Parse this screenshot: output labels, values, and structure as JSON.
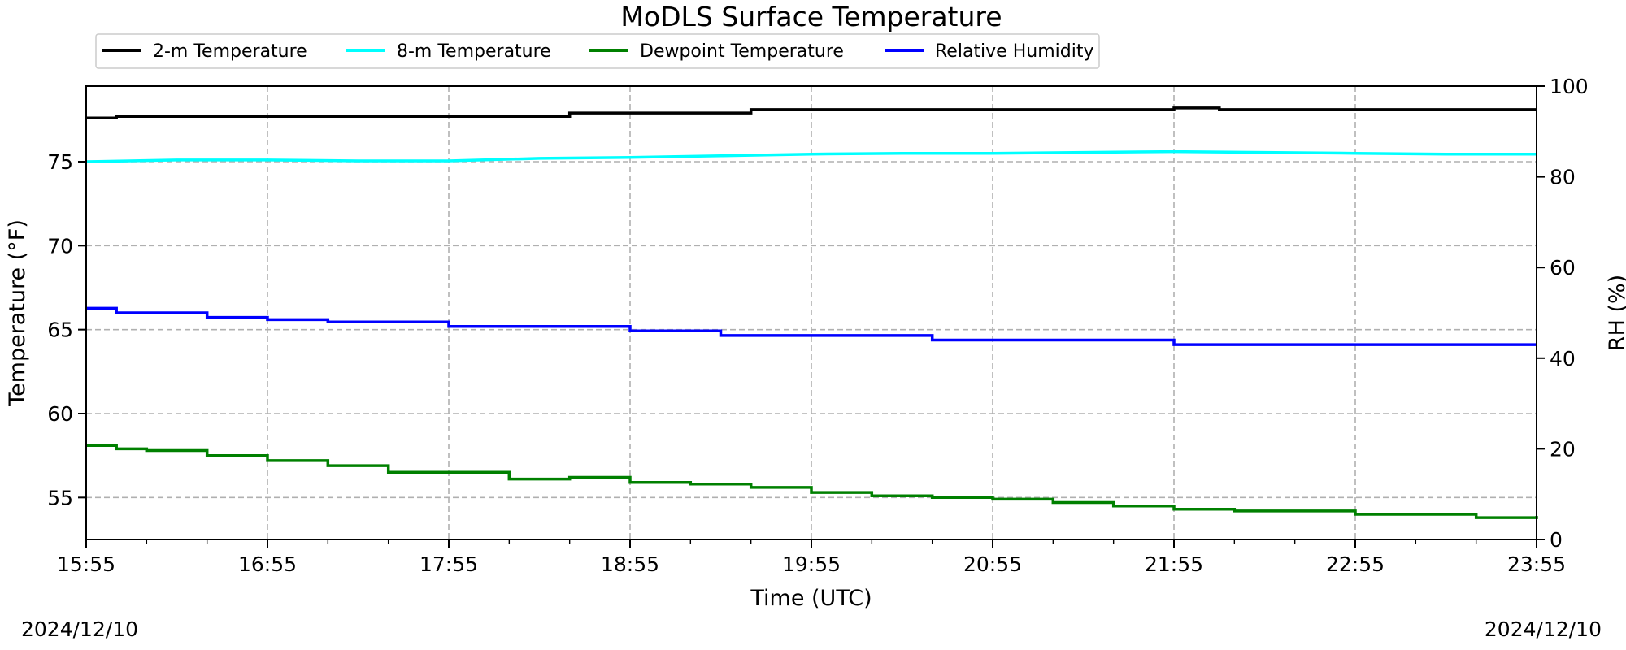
{
  "chart_data": {
    "type": "line",
    "title": "MoDLS Surface Temperature",
    "xlabel": "Time (UTC)",
    "ylabel": "Temperature ($^\\circ$F)",
    "ylabel_display": "Temperature (°F)",
    "y2label": "RH (%)",
    "x_ticks": [
      "15:55",
      "16:55",
      "17:55",
      "18:55",
      "19:55",
      "20:55",
      "21:55",
      "22:55",
      "23:55"
    ],
    "x_range": [
      "15:55",
      "23:55"
    ],
    "ylim": [
      52.5,
      79.5
    ],
    "y_ticks": [
      55,
      60,
      65,
      70,
      75
    ],
    "y2lim": [
      0,
      100
    ],
    "y2_ticks": [
      0,
      20,
      40,
      60,
      80,
      100
    ],
    "grid": true,
    "legend_position": "top-left outside",
    "series": [
      {
        "name": "2-m Temperature",
        "axis": "left",
        "color": "#000000",
        "x": [
          "15:55",
          "16:05",
          "16:55",
          "17:55",
          "18:25",
          "18:35",
          "18:55",
          "19:25",
          "19:35",
          "19:55",
          "20:55",
          "21:35",
          "21:55",
          "22:10",
          "22:55",
          "23:40",
          "23:55"
        ],
        "values": [
          77.6,
          77.7,
          77.7,
          77.7,
          77.7,
          77.9,
          77.9,
          77.9,
          78.1,
          78.1,
          78.1,
          78.1,
          78.2,
          78.1,
          78.1,
          78.1,
          78.1
        ]
      },
      {
        "name": "8-m Temperature",
        "axis": "left",
        "color": "#00ffff",
        "x": [
          "15:55",
          "16:25",
          "16:55",
          "17:25",
          "17:55",
          "18:25",
          "18:55",
          "19:25",
          "19:55",
          "20:25",
          "20:55",
          "21:25",
          "21:55",
          "22:25",
          "22:55",
          "23:25",
          "23:55"
        ],
        "values": [
          75.0,
          75.1,
          75.1,
          75.05,
          75.05,
          75.2,
          75.25,
          75.35,
          75.45,
          75.5,
          75.5,
          75.55,
          75.6,
          75.55,
          75.5,
          75.45,
          75.45
        ]
      },
      {
        "name": "Dewpoint Temperature",
        "axis": "left",
        "color": "#008000",
        "x": [
          "15:55",
          "16:05",
          "16:15",
          "16:35",
          "16:55",
          "17:15",
          "17:35",
          "17:55",
          "18:15",
          "18:35",
          "18:55",
          "19:15",
          "19:35",
          "19:55",
          "20:15",
          "20:35",
          "20:55",
          "21:15",
          "21:35",
          "21:55",
          "22:15",
          "22:35",
          "22:55",
          "23:15",
          "23:35",
          "23:55"
        ],
        "values": [
          58.1,
          57.9,
          57.8,
          57.5,
          57.2,
          56.9,
          56.5,
          56.5,
          56.1,
          56.2,
          55.9,
          55.8,
          55.6,
          55.3,
          55.1,
          55.0,
          54.9,
          54.7,
          54.5,
          54.3,
          54.2,
          54.2,
          54.0,
          54.0,
          53.8,
          53.9
        ]
      },
      {
        "name": "Relative Humidity",
        "axis": "right",
        "color": "#0000ff",
        "x": [
          "15:55",
          "16:05",
          "16:35",
          "16:55",
          "17:15",
          "17:35",
          "17:55",
          "18:25",
          "18:55",
          "19:25",
          "19:55",
          "20:25",
          "20:35",
          "20:55",
          "21:25",
          "21:55",
          "22:25",
          "22:55",
          "23:55"
        ],
        "values": [
          51,
          50,
          49,
          48.5,
          48,
          48,
          47,
          47,
          46,
          45,
          45,
          45,
          44,
          44,
          44,
          43,
          43,
          43,
          43
        ]
      }
    ],
    "dates": {
      "left": "2024/12/10",
      "right": "2024/12/10"
    }
  }
}
